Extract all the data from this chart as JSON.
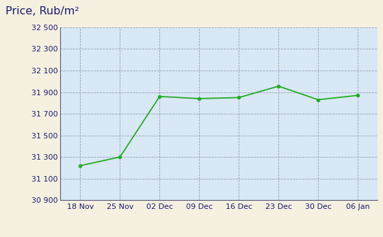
{
  "x_labels": [
    "18 Nov",
    "25 Nov",
    "02 Dec",
    "09 Dec",
    "16 Dec",
    "23 Dec",
    "30 Dec",
    "06 Jan"
  ],
  "y_values": [
    31220,
    31300,
    31860,
    31840,
    31850,
    31955,
    31830,
    31870
  ],
  "y_ticks": [
    30900,
    31100,
    31300,
    31500,
    31700,
    31900,
    32100,
    32300,
    32500
  ],
  "y_tick_labels": [
    "30 900",
    "31 100",
    "31 300",
    "31 500",
    "31 700",
    "31 900",
    "32 100",
    "32 300",
    "32 500"
  ],
  "ylim": [
    30900,
    32500
  ],
  "line_color": "#22aa22",
  "marker_color": "#22aa22",
  "bg_color": "#d8e8f4",
  "outer_bg": "#f5f0e0",
  "title": "Price, Rub/m²",
  "title_color": "#1a1a6e",
  "grid_color": "#9999bb",
  "axis_label_color": "#1a1a6e",
  "tick_fontsize": 8.0,
  "title_fontsize": 11.5
}
